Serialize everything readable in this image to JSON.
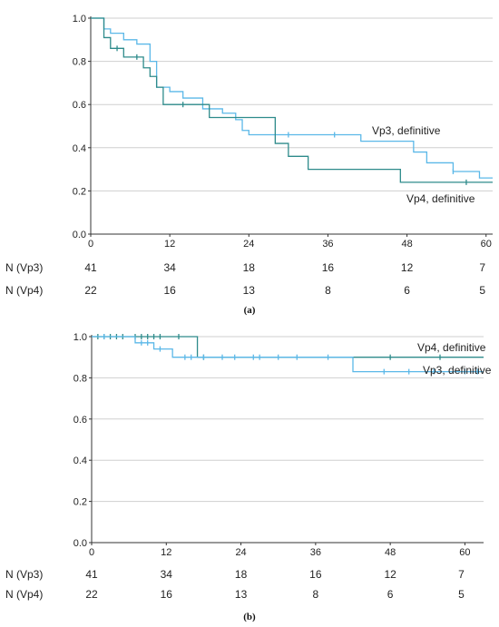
{
  "chart_data": [
    {
      "type": "line",
      "caption": "(a)",
      "xlim": [
        0,
        61
      ],
      "ylim": [
        0,
        1.0
      ],
      "xticks": [
        0,
        12,
        24,
        36,
        48,
        60
      ],
      "yticks": [
        0.0,
        0.2,
        0.4,
        0.6,
        0.8,
        1.0
      ],
      "grid": "horizontal",
      "series": [
        {
          "name": "Vp3, definitive",
          "color": "#5bb8e8",
          "x": [
            0,
            2,
            3,
            5,
            7,
            9,
            10,
            12,
            14,
            17,
            20,
            22,
            23,
            24,
            26,
            29,
            32,
            38,
            41,
            46,
            49,
            51,
            55,
            59,
            61
          ],
          "y": [
            1.0,
            0.95,
            0.93,
            0.9,
            0.88,
            0.8,
            0.68,
            0.66,
            0.63,
            0.58,
            0.56,
            0.53,
            0.48,
            0.46,
            0.46,
            0.46,
            0.46,
            0.46,
            0.43,
            0.43,
            0.38,
            0.33,
            0.29,
            0.26,
            0.26
          ],
          "censor_x": [
            30,
            37,
            55
          ],
          "censor_y": [
            0.46,
            0.46,
            0.29
          ]
        },
        {
          "name": "Vp4, definitive",
          "color": "#2e8b8b",
          "x": [
            0,
            2,
            3,
            5,
            8,
            9,
            10,
            11,
            17,
            18,
            27,
            28,
            30,
            33,
            47,
            61
          ],
          "y": [
            1.0,
            0.91,
            0.86,
            0.82,
            0.77,
            0.73,
            0.68,
            0.6,
            0.6,
            0.54,
            0.54,
            0.42,
            0.36,
            0.3,
            0.24,
            0.24
          ],
          "censor_x": [
            4,
            7,
            14,
            57
          ],
          "censor_y": [
            0.86,
            0.82,
            0.6,
            0.24
          ]
        }
      ],
      "risk_table": {
        "times": [
          0,
          12,
          24,
          36,
          48,
          60
        ],
        "rows": [
          {
            "label": "N (Vp3)",
            "values": [
              "41",
              "34",
              "18",
              "16",
              "12",
              "7"
            ]
          },
          {
            "label": "N (Vp4)",
            "values": [
              "22",
              "16",
              "13",
              "8",
              "6",
              "5"
            ]
          }
        ]
      }
    },
    {
      "type": "line",
      "caption": "(b)",
      "xlim": [
        0,
        63
      ],
      "ylim": [
        0,
        1.0
      ],
      "xticks": [
        0,
        12,
        24,
        36,
        48,
        60
      ],
      "yticks": [
        0.0,
        0.2,
        0.4,
        0.6,
        0.8,
        1.0
      ],
      "grid": "horizontal",
      "series": [
        {
          "name": "Vp4, definitive",
          "color": "#2e8b8b",
          "x": [
            0,
            17,
            63
          ],
          "y": [
            1.0,
            0.9,
            0.9
          ],
          "censor_x": [
            1,
            2,
            3,
            4,
            5,
            7,
            8,
            9,
            10,
            11,
            14,
            18,
            48,
            56
          ],
          "censor_y": [
            1.0,
            1.0,
            1.0,
            1.0,
            1.0,
            1.0,
            1.0,
            1.0,
            1.0,
            1.0,
            1.0,
            0.9,
            0.9,
            0.9
          ]
        },
        {
          "name": "Vp3, definitive",
          "color": "#5bb8e8",
          "x": [
            0,
            7,
            10,
            13,
            42,
            63
          ],
          "y": [
            1.0,
            0.97,
            0.94,
            0.9,
            0.83,
            0.83
          ],
          "censor_x": [
            2,
            8,
            9,
            11,
            15,
            16,
            18,
            21,
            23,
            26,
            27,
            30,
            33,
            38,
            47,
            51,
            55,
            60,
            62
          ],
          "censor_y": [
            1.0,
            0.97,
            0.97,
            0.94,
            0.9,
            0.9,
            0.9,
            0.9,
            0.9,
            0.9,
            0.9,
            0.9,
            0.9,
            0.9,
            0.83,
            0.83,
            0.83,
            0.83,
            0.83
          ]
        }
      ],
      "risk_table": {
        "times": [
          0,
          12,
          24,
          36,
          48,
          60
        ],
        "rows": [
          {
            "label": "N (Vp3)",
            "values": [
              "41",
              "34",
              "18",
              "16",
              "12",
              "7"
            ]
          },
          {
            "label": "N (Vp4)",
            "values": [
              "22",
              "16",
              "13",
              "8",
              "6",
              "5"
            ]
          }
        ]
      }
    }
  ]
}
